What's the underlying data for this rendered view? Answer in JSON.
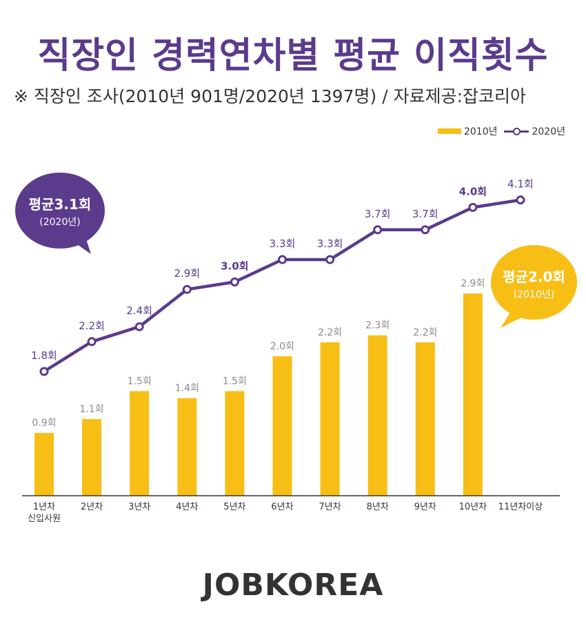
{
  "title": "직장인 경력연차별 평균 이직횟수",
  "subtitle": "※ 직장인 조사(2010년 901명/2020년 1397명) / 자료제공:잡코리아",
  "legend": {
    "series_2010": "2010년",
    "series_2020": "2020년"
  },
  "callouts": {
    "avg_2020": {
      "label": "평균3.1회",
      "sub": "(2020년)"
    },
    "avg_2010": {
      "label": "평균2.0회",
      "sub": "(2010년)"
    }
  },
  "logo": "JOBKOREA",
  "colors": {
    "bar_2010": "#f7be16",
    "line_2020": "#5b3b8c",
    "title": "#5b3b8c",
    "bar_label": "#8a8a8a"
  },
  "chart_data": {
    "type": "bar",
    "categories": [
      "1년차\n신입사원",
      "2년차",
      "3년차",
      "4년차",
      "5년차",
      "6년차",
      "7년차",
      "8년차",
      "9년차",
      "10년차",
      "11년차이상"
    ],
    "series": [
      {
        "name": "2010년",
        "type": "bar",
        "values": [
          0.9,
          1.1,
          1.5,
          1.4,
          1.5,
          2.0,
          2.2,
          2.3,
          2.2,
          2.9,
          null
        ],
        "labels": [
          "0.9회",
          "1.1회",
          "1.5회",
          "1.4회",
          "1.5회",
          "2.0회",
          "2.2회",
          "2.3회",
          "2.2회",
          "2.9회",
          null
        ]
      },
      {
        "name": "2020년",
        "type": "line",
        "values": [
          1.8,
          2.2,
          2.4,
          2.9,
          3.0,
          3.3,
          3.3,
          3.7,
          3.7,
          4.0,
          4.1
        ],
        "labels": [
          "1.8회",
          "2.2회",
          "2.4회",
          "2.9회",
          "3.0회",
          "3.3회",
          "3.3회",
          "3.7회",
          "3.7회",
          "4.0회",
          "4.1회"
        ]
      }
    ],
    "legend_position": "top-right",
    "grid": false
  }
}
